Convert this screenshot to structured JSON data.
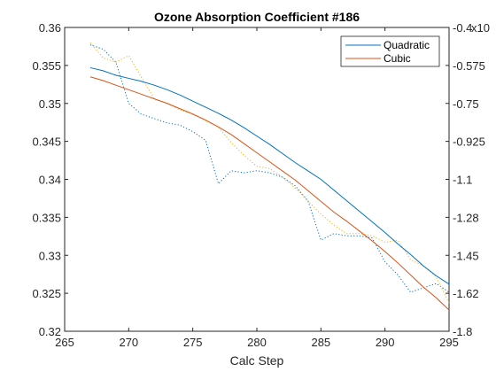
{
  "chart_data": {
    "type": "line",
    "title": "Ozone Absorption Coefficient  #186",
    "xlabel": "Calc Step",
    "ylabel_left": "",
    "ylabel_right": "",
    "xlim": [
      265,
      295
    ],
    "ylim_left": [
      0.32,
      0.36
    ],
    "ylim_right": [
      -1.8,
      -0.4
    ],
    "right_axis_exponent": "x10",
    "x_ticks": [
      265,
      270,
      275,
      280,
      285,
      290,
      295
    ],
    "y_ticks_left": [
      "0.32",
      "0.325",
      "0.33",
      "0.335",
      "0.34",
      "0.345",
      "0.35",
      "0.355",
      "0.36"
    ],
    "y_ticks_right": [
      "-1.8",
      "-1.62",
      "-1.45",
      "-1.28",
      "-1.1",
      "-0.925",
      "-0.75",
      "-0.575",
      "-0.4"
    ],
    "y_ticks_right_values": [
      -1.8,
      -1.625,
      -1.45,
      -1.275,
      -1.1,
      -0.925,
      -0.75,
      -0.575,
      -0.4
    ],
    "legend_position": "top-right",
    "x": [
      267,
      268,
      269,
      270,
      271,
      272,
      273,
      274,
      275,
      276,
      277,
      278,
      279,
      280,
      281,
      282,
      283,
      284,
      285,
      286,
      287,
      288,
      289,
      290,
      291,
      292,
      293,
      294,
      295
    ],
    "series": [
      {
        "name": "Quadratic",
        "axis": "left",
        "style": "solid",
        "color": "#0072bd",
        "values": [
          0.3547,
          0.3543,
          0.3537,
          0.3533,
          0.3529,
          0.3524,
          0.3518,
          0.3511,
          0.3503,
          0.3495,
          0.3487,
          0.3478,
          0.3468,
          0.3457,
          0.3446,
          0.3434,
          0.3422,
          0.3411,
          0.34,
          0.3386,
          0.3372,
          0.3358,
          0.3344,
          0.333,
          0.3315,
          0.3301,
          0.3286,
          0.3273,
          0.3262
        ]
      },
      {
        "name": "Cubic",
        "axis": "left",
        "style": "solid",
        "color": "#d95319",
        "values": [
          0.3535,
          0.353,
          0.3524,
          0.3518,
          0.3512,
          0.3506,
          0.35,
          0.3493,
          0.3486,
          0.3478,
          0.3469,
          0.3459,
          0.3447,
          0.3435,
          0.3423,
          0.3411,
          0.3399,
          0.3385,
          0.3371,
          0.3357,
          0.3345,
          0.3332,
          0.3319,
          0.3305,
          0.329,
          0.3274,
          0.3258,
          0.3244,
          0.3228
        ]
      },
      {
        "name": "",
        "axis": "right",
        "style": "dotted",
        "color": "#0072bd",
        "values": [
          -0.48,
          -0.5,
          -0.56,
          -0.75,
          -0.8,
          -0.82,
          -0.84,
          -0.85,
          -0.88,
          -0.92,
          -1.12,
          -1.06,
          -1.07,
          -1.06,
          -1.07,
          -1.09,
          -1.13,
          -1.2,
          -1.38,
          -1.35,
          -1.36,
          -1.36,
          -1.37,
          -1.48,
          -1.54,
          -1.62,
          -1.6,
          -1.58,
          -1.62
        ]
      },
      {
        "name": "",
        "axis": "right",
        "style": "dotted",
        "color": "#edb120",
        "values": [
          -0.47,
          -0.54,
          -0.56,
          -0.53,
          -0.63,
          -0.73,
          -0.75,
          -0.78,
          -0.8,
          -0.83,
          -0.86,
          -0.93,
          -0.99,
          -1.04,
          -1.05,
          -1.09,
          -1.14,
          -1.2,
          -1.26,
          -1.31,
          -1.35,
          -1.35,
          -1.36,
          -1.39,
          -1.38,
          -1.47,
          -1.5,
          -1.55,
          -1.67
        ]
      }
    ]
  }
}
